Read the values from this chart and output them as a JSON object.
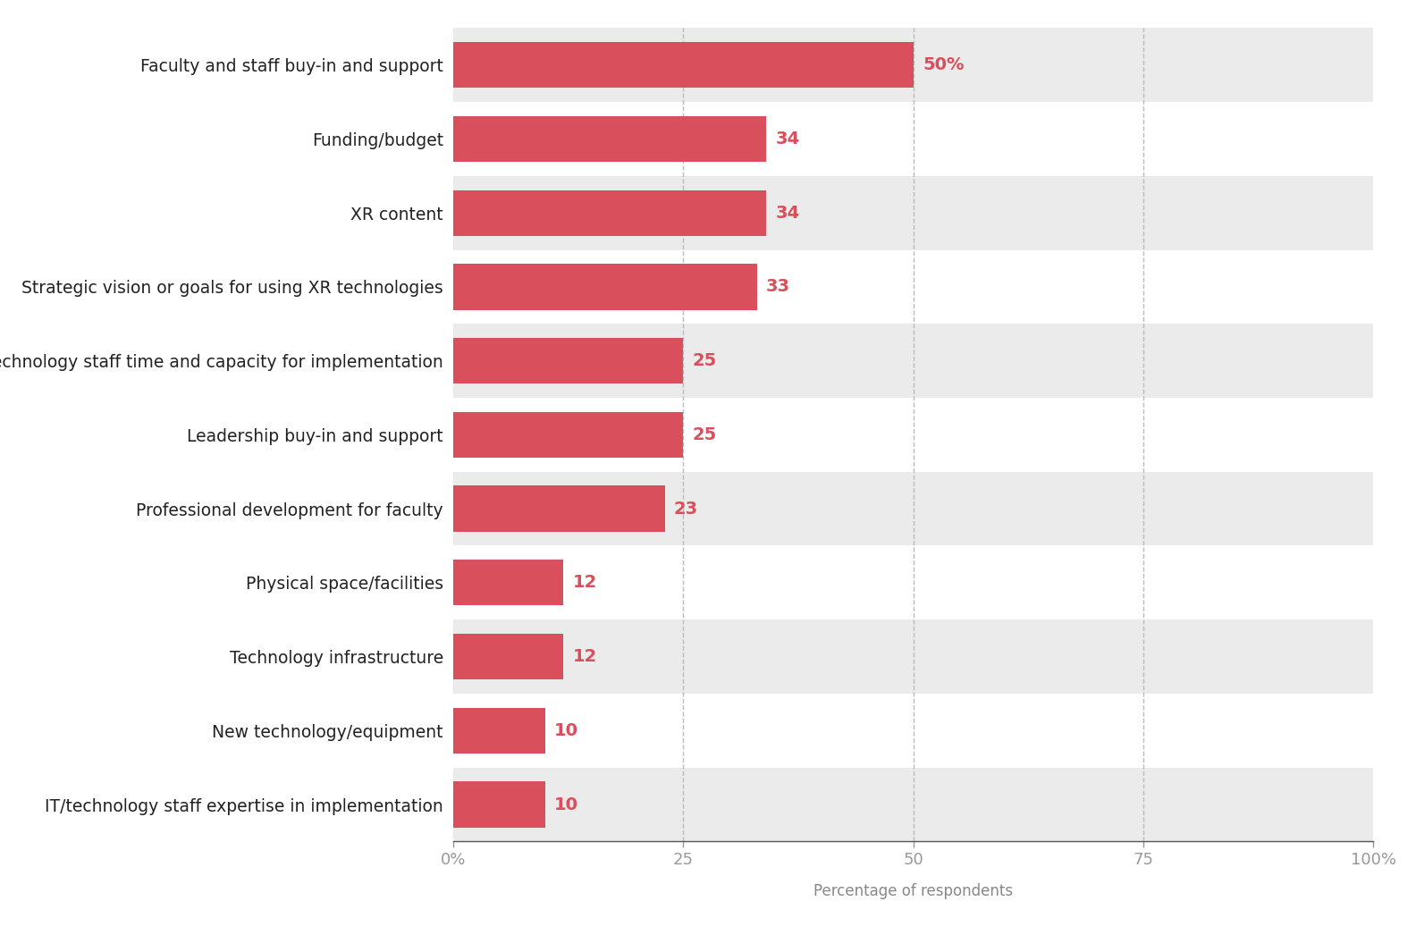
{
  "categories": [
    "IT/technology staff expertise in implementation",
    "New technology/equipment",
    "Technology infrastructure",
    "Physical space/facilities",
    "Professional development for faculty",
    "Leadership buy-in and support",
    "IT/technology staff time and capacity for implementation",
    "Strategic vision or goals for using XR technologies",
    "XR content",
    "Funding/budget",
    "Faculty and staff buy-in and support"
  ],
  "values": [
    10,
    10,
    12,
    12,
    23,
    25,
    25,
    33,
    34,
    34,
    50
  ],
  "bar_color": "#d94f5c",
  "bg_color_gray": "#ebebeb",
  "bg_color_white": "#ffffff",
  "label_color": "#d94f5c",
  "xlabel": "Percentage of respondents",
  "xlabel_color": "#888888",
  "tick_label_color": "#999999",
  "category_label_color": "#222222",
  "xlim": [
    0,
    100
  ],
  "xticks": [
    0,
    25,
    50,
    75,
    100
  ],
  "xticklabels": [
    "0%",
    "25",
    "50",
    "75",
    "100%"
  ],
  "bar_height": 0.62,
  "top_bar_label_suffix": "%",
  "figsize": [
    15.84,
    10.46
  ],
  "dpi": 100,
  "grid_color": "#bbbbbb",
  "grid_linestyle": "--",
  "grid_linewidth": 1.0,
  "bar_label_fontsize": 14,
  "category_fontsize": 13.5,
  "xlabel_fontsize": 12,
  "xtick_fontsize": 13
}
